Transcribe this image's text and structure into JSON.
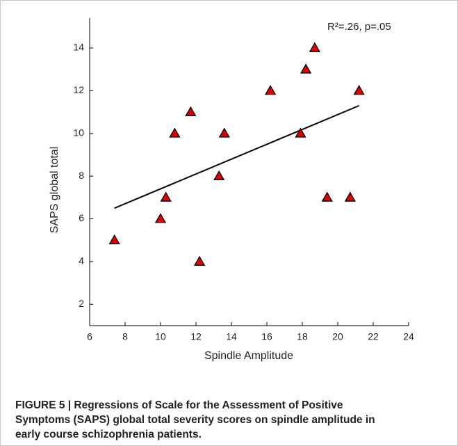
{
  "chart_data": {
    "type": "scatter",
    "x_label": "Spindle Amplitude",
    "y_label": "SAPS global total",
    "annotation": "R²=.26, p=.05",
    "series": [
      {
        "x": [
          7.4,
          10.0,
          10.3,
          10.8,
          11.7,
          12.2,
          13.3,
          13.6,
          16.2,
          17.9,
          18.2,
          18.7,
          19.4,
          20.7,
          21.2
        ],
        "values": [
          5,
          6,
          7,
          10,
          11,
          4,
          8,
          10,
          12,
          10,
          13,
          14,
          7,
          7,
          12
        ],
        "color": "#e00000"
      }
    ],
    "fit_line": {
      "x": [
        7.4,
        21.2
      ],
      "values": [
        6.5,
        11.3
      ],
      "color": "#000000"
    },
    "xlim": [
      6,
      24
    ],
    "xticks": [
      6,
      8,
      10,
      12,
      14,
      16,
      18,
      20,
      22,
      24
    ],
    "ylim": [
      1,
      15.4
    ],
    "yticks": [
      2,
      4,
      6,
      8,
      10,
      12,
      14
    ]
  },
  "caption_lines": [
    "FIGURE 5 | Regressions of Scale for the Assessment of Positive",
    "Symptoms (SAPS) global total severity scores on spindle amplitude in",
    "early course schizophrenia patients."
  ]
}
